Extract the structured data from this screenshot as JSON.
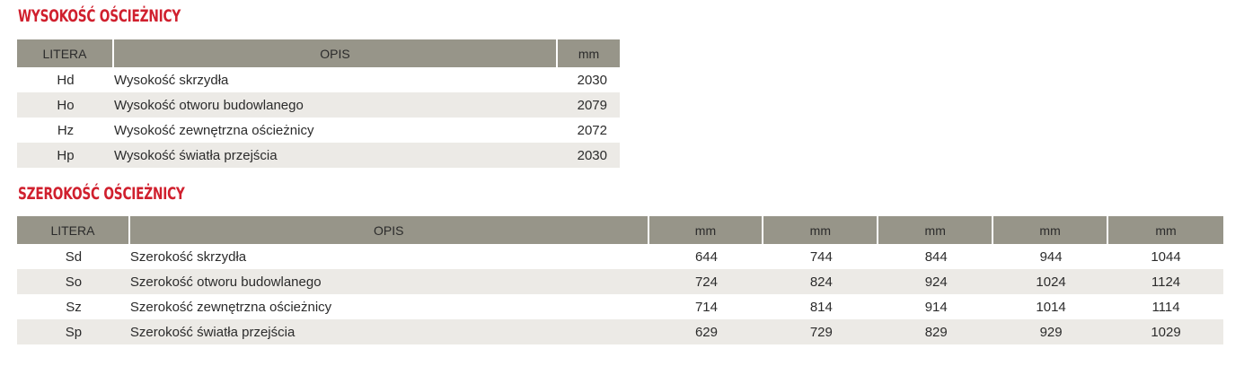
{
  "height_section": {
    "title": "WYSOKOŚĆ OŚCIEŻNICY",
    "headers": {
      "letter": "LITERA",
      "desc": "OPIS",
      "unit": "mm"
    },
    "rows": [
      {
        "letter": "Hd",
        "desc": "Wysokość skrzydła",
        "value": "2030"
      },
      {
        "letter": "Ho",
        "desc": "Wysokość otworu budowlanego",
        "value": "2079"
      },
      {
        "letter": "Hz",
        "desc": "Wysokość zewnętrzna ościeżnicy",
        "value": "2072"
      },
      {
        "letter": "Hp",
        "desc": "Wysokość światła przejścia",
        "value": "2030"
      }
    ]
  },
  "width_section": {
    "title": "SZEROKOŚĆ OŚCIEŻNICY",
    "headers": {
      "letter": "LITERA",
      "desc": "OPIS",
      "units": [
        "mm",
        "mm",
        "mm",
        "mm",
        "mm"
      ]
    },
    "rows": [
      {
        "letter": "Sd",
        "desc": "Szerokość skrzydła",
        "values": [
          "644",
          "744",
          "844",
          "944",
          "1044"
        ]
      },
      {
        "letter": "So",
        "desc": "Szerokość otworu budowlanego",
        "values": [
          "724",
          "824",
          "924",
          "1024",
          "1124"
        ]
      },
      {
        "letter": "Sz",
        "desc": "Szerokość zewnętrzna ościeżnicy",
        "values": [
          "714",
          "814",
          "914",
          "1014",
          "1114"
        ]
      },
      {
        "letter": "Sp",
        "desc": "Szerokość światła przejścia",
        "values": [
          "629",
          "729",
          "829",
          "929",
          "1029"
        ]
      }
    ]
  },
  "colors": {
    "title_red": "#d0202e",
    "header_gray": "#979589",
    "row_alt": "#eceae6"
  }
}
